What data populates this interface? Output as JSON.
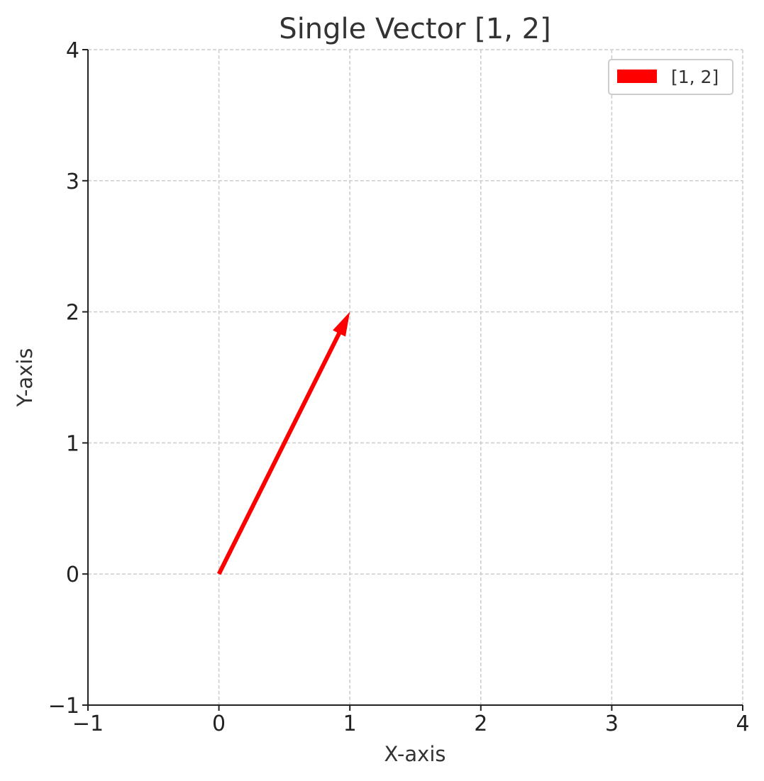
{
  "chart_data": {
    "type": "vector",
    "title": "Single Vector [1, 2]",
    "xlabel": "X-axis",
    "ylabel": "Y-axis",
    "xlim": [
      -1,
      4
    ],
    "ylim": [
      -1,
      4
    ],
    "xticks": [
      {
        "value": -1,
        "label": "−1"
      },
      {
        "value": 0,
        "label": "0"
      },
      {
        "value": 1,
        "label": "1"
      },
      {
        "value": 2,
        "label": "2"
      },
      {
        "value": 3,
        "label": "3"
      },
      {
        "value": 4,
        "label": "4"
      }
    ],
    "yticks": [
      {
        "value": -1,
        "label": "−1"
      },
      {
        "value": 0,
        "label": "0"
      },
      {
        "value": 1,
        "label": "1"
      },
      {
        "value": 2,
        "label": "2"
      },
      {
        "value": 3,
        "label": "3"
      },
      {
        "value": 4,
        "label": "4"
      }
    ],
    "grid": true,
    "grid_style": "dashed",
    "legend_position": "top-right",
    "series": [
      {
        "name": "[1, 2]",
        "origin": [
          0,
          0
        ],
        "vector": [
          1,
          2
        ],
        "color": "#ff0000"
      }
    ]
  }
}
